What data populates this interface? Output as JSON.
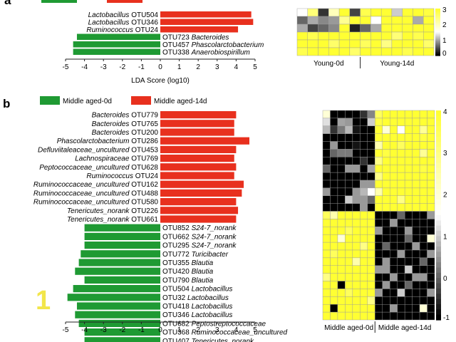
{
  "panel_a_letter": "a",
  "panel_b_letter": "b",
  "watermark": "1",
  "colors": {
    "green": "#1f9a33",
    "red": "#e8301e",
    "heat_low": "#000000",
    "heat_mid": "#ffffff",
    "heat_high": "#ffff33"
  },
  "chart_data": [
    {
      "type": "bar",
      "panel": "a",
      "xlabel": "LDA Score (log10)",
      "xlim": [
        -5,
        5
      ],
      "xticks": [
        "-5",
        "-4",
        "-3",
        "-2",
        "-1",
        "0",
        "1",
        "2",
        "3",
        "4",
        "5"
      ],
      "legend_position": "top",
      "bars": [
        {
          "genus": "Lactobacillus",
          "otu": "OTU504",
          "value": 4.8,
          "group": "red"
        },
        {
          "genus": "Lactobacillus",
          "otu": "OTU346",
          "value": 4.9,
          "group": "red"
        },
        {
          "genus": "Ruminococcus",
          "otu": "OTU24",
          "value": 4.1,
          "group": "red"
        },
        {
          "genus": "Bacteroides",
          "otu": "OTU723",
          "value": -4.4,
          "group": "green"
        },
        {
          "genus": "Phascolarctobacterium",
          "otu": "OTU457",
          "value": -4.6,
          "group": "green"
        },
        {
          "genus": "Anaerobiospirillum",
          "otu": "OTU338",
          "value": -4.6,
          "group": "green"
        }
      ]
    },
    {
      "type": "bar",
      "panel": "b",
      "xlabel": "",
      "xlim": [
        -5,
        5
      ],
      "xticks": [
        "-5",
        "-4",
        "-3",
        "-2",
        "-1",
        "0",
        "1",
        "2",
        "3",
        "4",
        "5"
      ],
      "legend": [
        {
          "name": "Middle aged-0d",
          "color": "#1f9a33"
        },
        {
          "name": "Middle aged-14d",
          "color": "#e8301e"
        }
      ],
      "legend_position": "top",
      "bars": [
        {
          "genus": "Bacteroides",
          "otu": "OTU779",
          "value": 4.0,
          "group": "red"
        },
        {
          "genus": "Bacteroides",
          "otu": "OTU765",
          "value": 3.9,
          "group": "red"
        },
        {
          "genus": "Bacteroides",
          "otu": "OTU200",
          "value": 3.9,
          "group": "red"
        },
        {
          "genus": "Phascolarctobacterium",
          "otu": "OTU286",
          "value": 4.7,
          "group": "red"
        },
        {
          "genus": "Defluviitaleaceae_uncultured",
          "otu": "OTU453",
          "value": 4.0,
          "group": "red"
        },
        {
          "genus": "Lachnospiraceae",
          "otu": "OTU769",
          "value": 3.9,
          "group": "red"
        },
        {
          "genus": "Peptococcaceae_uncultured",
          "otu": "OTU628",
          "value": 4.0,
          "group": "red"
        },
        {
          "genus": "Ruminococcus",
          "otu": "OTU24",
          "value": 3.9,
          "group": "red"
        },
        {
          "genus": "Ruminococcaceae_uncultured",
          "otu": "OTU162",
          "value": 4.4,
          "group": "red"
        },
        {
          "genus": "Ruminococcaceae_uncultured",
          "otu": "OTU488",
          "value": 4.3,
          "group": "red"
        },
        {
          "genus": "Ruminococcaceae_uncultured",
          "otu": "OTU580",
          "value": 4.0,
          "group": "red"
        },
        {
          "genus": "Tenericutes_norank",
          "otu": "OTU226",
          "value": 4.1,
          "group": "red"
        },
        {
          "genus": "Tenericutes_norank",
          "otu": "OTU661",
          "value": 4.0,
          "group": "red"
        },
        {
          "genus": "S24-7_norank",
          "otu": "OTU852",
          "value": -4.0,
          "group": "green"
        },
        {
          "genus": "S24-7_norank",
          "otu": "OTU662",
          "value": -4.0,
          "group": "green"
        },
        {
          "genus": "S24-7_norank",
          "otu": "OTU295",
          "value": -4.0,
          "group": "green"
        },
        {
          "genus": "Turicibacter",
          "otu": "OTU772",
          "value": -4.2,
          "group": "green"
        },
        {
          "genus": "Blautia",
          "otu": "OTU355",
          "value": -4.3,
          "group": "green"
        },
        {
          "genus": "Blautia",
          "otu": "OTU420",
          "value": -4.5,
          "group": "green"
        },
        {
          "genus": "Blautia",
          "otu": "OTU790",
          "value": -4.0,
          "group": "green"
        },
        {
          "genus": "Lactobacillus",
          "otu": "OTU504",
          "value": -4.6,
          "group": "green"
        },
        {
          "genus": "Lactobacillus",
          "otu": "OTU32",
          "value": -4.9,
          "group": "green"
        },
        {
          "genus": "Lactobacillus",
          "otu": "OTU418",
          "value": -4.4,
          "group": "green"
        },
        {
          "genus": "Lactobacillus",
          "otu": "OTU346",
          "value": -4.5,
          "group": "green"
        },
        {
          "genus": "Peptostreptococcaceae",
          "otu": "OTU682",
          "value": -4.3,
          "group": "green"
        },
        {
          "genus": "Ruminococcaceae_uncultured",
          "otu": "OTU368",
          "value": -4.0,
          "group": "green"
        },
        {
          "genus": "Tenericutes_norank",
          "otu": "OTU407",
          "value": -4.0,
          "group": "green"
        }
      ]
    },
    {
      "type": "heatmap",
      "panel": "a",
      "group_labels": [
        "Young-0d",
        "Young-14d"
      ],
      "colorbar_ticks": [
        "3",
        "2",
        "1",
        "0"
      ],
      "vmin": 0,
      "vmax": 3,
      "values": [
        [
          1.5,
          2.5,
          0.3,
          2.0,
          3.0,
          0.4,
          2.8,
          3.0,
          3.0,
          1.2,
          3.0,
          3.0,
          2.9
        ],
        [
          0.6,
          1.0,
          0.8,
          0.9,
          2.3,
          3.0,
          3.0,
          1.5,
          3.0,
          3.0,
          3.0,
          1.0,
          3.0
        ],
        [
          1.0,
          0.4,
          0.6,
          0.8,
          3.0,
          0.2,
          0.6,
          1.0,
          3.0,
          3.0,
          3.0,
          3.0,
          3.0
        ],
        [
          3.0,
          2.8,
          3.0,
          3.0,
          3.0,
          3.0,
          3.0,
          3.0,
          3.0,
          2.5,
          3.0,
          2.8,
          3.0
        ],
        [
          3.0,
          3.0,
          3.0,
          2.6,
          3.0,
          3.0,
          2.7,
          3.0,
          2.4,
          3.0,
          3.0,
          3.0,
          2.6
        ],
        [
          2.8,
          3.0,
          3.0,
          3.0,
          3.0,
          2.6,
          3.0,
          3.0,
          3.0,
          3.0,
          2.8,
          3.0,
          3.0
        ]
      ]
    },
    {
      "type": "heatmap",
      "panel": "b",
      "group_labels": [
        "Middle aged-0d",
        "Middle aged-14d"
      ],
      "colorbar_ticks": [
        "4",
        "3",
        "2",
        "1",
        "0",
        "-1"
      ],
      "vmin": -1,
      "vmax": 4,
      "values": [
        [
          2.0,
          -1.0,
          -1.0,
          -1.0,
          -1.0,
          -0.5,
          0.3,
          3.5,
          4.0,
          4.0,
          4.0,
          4.0,
          4.0,
          4.0,
          4.0
        ],
        [
          1.2,
          -1.0,
          0.6,
          0.5,
          -1.0,
          -1.0,
          1.0,
          3.8,
          4.0,
          4.0,
          4.0,
          4.0,
          4.0,
          4.0,
          4.0
        ],
        [
          0.8,
          -0.5,
          0.2,
          0.8,
          -0.8,
          -1.0,
          -1.0,
          4.0,
          2.0,
          4.0,
          1.5,
          4.0,
          4.0,
          2.8,
          4.0
        ],
        [
          -1.0,
          -1.0,
          -1.0,
          -1.0,
          -1.0,
          -1.0,
          -1.0,
          4.0,
          4.0,
          4.0,
          4.0,
          4.0,
          4.0,
          3.8,
          4.0
        ],
        [
          -1.0,
          0.5,
          -1.0,
          -1.0,
          -0.8,
          -1.0,
          -1.0,
          2.5,
          4.0,
          4.0,
          3.5,
          4.0,
          4.0,
          4.0,
          4.0
        ],
        [
          -1.0,
          0.0,
          0.2,
          0.2,
          -1.0,
          -1.0,
          -1.0,
          4.0,
          3.8,
          4.0,
          4.0,
          4.0,
          4.0,
          2.8,
          4.0
        ],
        [
          -1.0,
          -1.0,
          -1.0,
          -1.0,
          -1.0,
          -0.5,
          -1.0,
          3.0,
          4.0,
          4.0,
          4.0,
          4.0,
          4.0,
          4.0,
          4.0
        ],
        [
          0.0,
          -1.0,
          -1.0,
          0.5,
          0.5,
          -1.0,
          0.6,
          4.0,
          4.0,
          4.0,
          4.0,
          4.0,
          4.0,
          3.8,
          4.0
        ],
        [
          -1.0,
          -1.0,
          -1.0,
          -1.0,
          -1.0,
          -1.0,
          -1.0,
          3.0,
          4.0,
          4.0,
          4.0,
          4.0,
          4.0,
          4.0,
          4.0
        ],
        [
          -1.0,
          -1.0,
          -1.0,
          -1.0,
          -1.0,
          0.5,
          0.5,
          4.0,
          4.0,
          4.0,
          4.0,
          4.0,
          4.0,
          4.0,
          4.0
        ],
        [
          0.5,
          -1.0,
          -1.0,
          -1.0,
          0.5,
          0.8,
          1.5,
          2.5,
          4.0,
          4.0,
          4.0,
          4.0,
          4.0,
          4.0,
          4.0
        ],
        [
          -1.0,
          -1.0,
          -1.0,
          1.0,
          0.5,
          0.5,
          0.0,
          4.0,
          4.0,
          4.0,
          3.0,
          4.0,
          4.0,
          4.0,
          4.0
        ],
        [
          -1.0,
          -1.0,
          -1.0,
          -1.0,
          -1.0,
          0.5,
          -1.0,
          4.0,
          4.0,
          4.0,
          4.0,
          4.0,
          4.0,
          4.0,
          4.0
        ],
        [
          3.5,
          2.5,
          4.0,
          4.0,
          4.0,
          4.0,
          4.0,
          -1.0,
          -1.0,
          -1.0,
          0.0,
          -1.0,
          -1.0,
          -1.0,
          0.5
        ],
        [
          4.0,
          4.0,
          4.0,
          4.0,
          4.0,
          4.0,
          4.0,
          -1.0,
          -1.0,
          0.5,
          -1.0,
          -1.0,
          -1.0,
          -1.0,
          -1.0
        ],
        [
          4.0,
          4.0,
          4.0,
          3.5,
          4.0,
          4.0,
          4.0,
          0.5,
          -1.0,
          -1.0,
          -1.0,
          0.5,
          -1.0,
          -1.0,
          -1.0
        ],
        [
          4.0,
          4.0,
          2.0,
          4.0,
          4.0,
          4.0,
          4.0,
          -1.0,
          -1.0,
          -1.0,
          -1.0,
          0.0,
          -1.0,
          -1.0,
          2.0
        ],
        [
          4.0,
          4.0,
          4.0,
          4.0,
          4.0,
          3.0,
          4.0,
          -1.0,
          0.0,
          -1.0,
          -1.0,
          -1.0,
          0.5,
          -1.0,
          -1.0
        ],
        [
          4.0,
          3.5,
          4.0,
          4.0,
          4.0,
          4.0,
          4.0,
          -1.0,
          -1.0,
          -1.0,
          0.5,
          -1.0,
          -1.0,
          -1.0,
          0.5
        ],
        [
          4.0,
          4.0,
          4.0,
          4.0,
          2.5,
          4.0,
          4.0,
          -1.0,
          0.5,
          -1.0,
          -1.0,
          -1.0,
          -1.0,
          0.0,
          -1.0
        ],
        [
          4.0,
          4.0,
          4.0,
          4.0,
          4.0,
          4.0,
          4.0,
          0.5,
          0.5,
          -1.0,
          -1.0,
          1.0,
          -1.0,
          -1.0,
          -1.0
        ],
        [
          3.0,
          4.0,
          4.0,
          4.0,
          4.0,
          4.0,
          4.0,
          -1.0,
          -1.0,
          0.5,
          -1.0,
          -1.0,
          0.5,
          0.5,
          -1.0
        ],
        [
          4.0,
          4.0,
          -1.0,
          4.0,
          4.0,
          4.0,
          4.0,
          -1.0,
          0.5,
          -1.0,
          -1.0,
          0.0,
          -1.0,
          -1.0,
          -1.0
        ],
        [
          4.0,
          4.0,
          4.0,
          3.5,
          4.0,
          4.0,
          4.0,
          0.5,
          -1.0,
          -1.0,
          1.0,
          -1.0,
          -1.0,
          -1.0,
          0.5
        ],
        [
          4.0,
          4.0,
          4.0,
          4.0,
          4.0,
          4.0,
          3.0,
          -1.0,
          -1.0,
          -1.0,
          -1.0,
          -1.0,
          -1.0,
          -1.0,
          -1.0
        ],
        [
          4.0,
          -1.0,
          4.0,
          4.0,
          4.0,
          4.0,
          4.0,
          -1.0,
          -1.0,
          0.5,
          -1.0,
          -1.0,
          -1.0,
          2.0,
          -1.0
        ],
        [
          4.0,
          4.0,
          4.0,
          4.0,
          4.0,
          4.0,
          4.0,
          -1.0,
          -1.0,
          -1.0,
          -1.0,
          -1.0,
          -1.0,
          -1.0,
          -1.0
        ]
      ]
    }
  ]
}
